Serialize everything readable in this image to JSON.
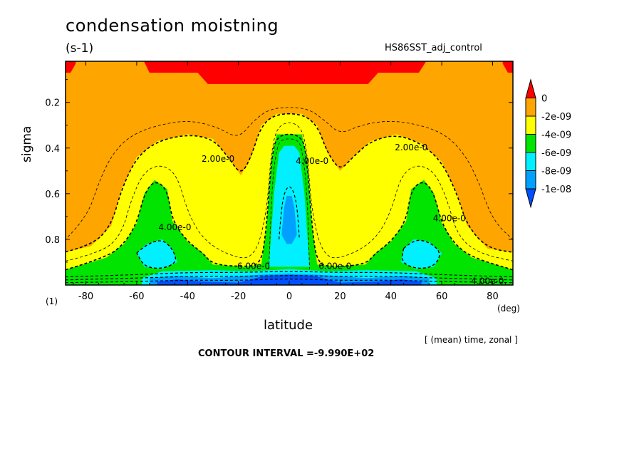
{
  "title": "condensation moistning",
  "units": "(s-1)",
  "run_name": "HS86SST_adj_control",
  "averaging_note": "[ (mean) time, zonal ]",
  "contour_interval": "CONTOUR INTERVAL =-9.990E+02",
  "colors": {
    "red": "#ff0000",
    "orange": "#ffa500",
    "yellow": "#ffff00",
    "green": "#00e400",
    "cyan": "#00f0ff",
    "sky": "#00a0ff",
    "blue": "#0050ff"
  },
  "chart_data": {
    "type": "heatmap",
    "xlabel": "latitude",
    "ylabel": "sigma",
    "x_unit": "(deg)",
    "y_axis_start_label": "(1)",
    "xlim": [
      -88,
      88
    ],
    "ylim": [
      1.0,
      0.02
    ],
    "x_ticks": [
      -80,
      -60,
      -40,
      -20,
      0,
      20,
      40,
      60,
      80
    ],
    "x_tick_labels": [
      "-80",
      "-60",
      "-40",
      "-20",
      "0",
      "20",
      "40",
      "60",
      "80"
    ],
    "y_ticks": [
      0.2,
      0.4,
      0.6,
      0.8
    ],
    "y_tick_labels": [
      "0.2",
      "0.4",
      "0.6",
      "0.8"
    ],
    "colorbar": {
      "levels": [
        "0",
        "-2e-09",
        "-4e-09",
        "-6e-09",
        "-8e-09",
        "-1e-08"
      ],
      "colors": [
        "#ff0000",
        "#ffa500",
        "#ffff00",
        "#00e400",
        "#00f0ff",
        "#00a0ff",
        "#0050ff"
      ]
    },
    "contour_labels": [
      {
        "text": "2.00e-0",
        "lat": -28,
        "sigma": 0.46
      },
      {
        "text": "2.00e-0",
        "lat": 48,
        "sigma": 0.41
      },
      {
        "text": "4.00e-0",
        "lat": 9,
        "sigma": 0.47
      },
      {
        "text": "4.00e-0",
        "lat": -45,
        "sigma": 0.76
      },
      {
        "text": "4.00e-0",
        "lat": 63,
        "sigma": 0.72
      },
      {
        "text": "6.00e-0",
        "lat": -14,
        "sigma": 0.93
      },
      {
        "text": "6.00e-0",
        "lat": 18,
        "sigma": 0.93
      },
      {
        "text": "4.00e-0",
        "lat": 78,
        "sigma": 0.995
      }
    ]
  }
}
